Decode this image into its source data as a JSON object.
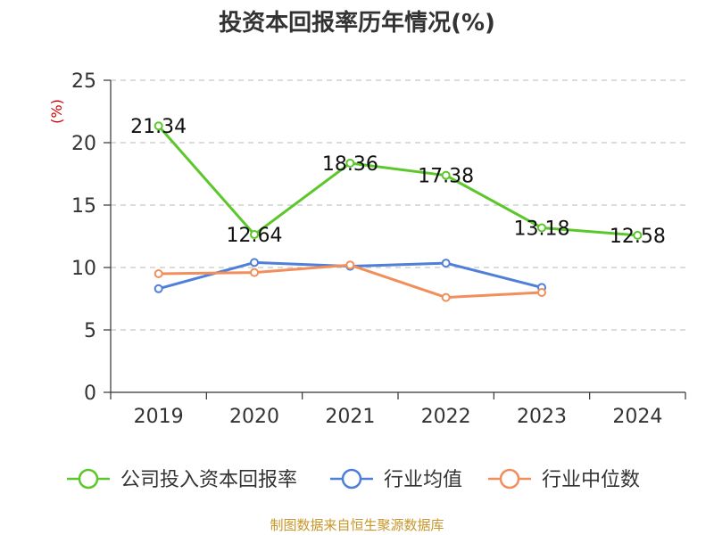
{
  "chart_data": {
    "type": "line",
    "title": "投资本回报率历年情况(%)",
    "ylabel": "(%)",
    "xlabel": "",
    "categories": [
      "2019",
      "2020",
      "2021",
      "2022",
      "2023",
      "2024"
    ],
    "ylim": [
      0,
      25
    ],
    "yticks": [
      0,
      5,
      10,
      15,
      20,
      25
    ],
    "grid": true,
    "legend_position": "bottom",
    "series": [
      {
        "name": "公司投入资本回报率",
        "color": "#5cc72a",
        "values": [
          21.34,
          12.64,
          18.36,
          17.38,
          13.18,
          12.58
        ],
        "labels": [
          "21.34",
          "12.64",
          "18.36",
          "17.38",
          "13.18",
          "12.58"
        ]
      },
      {
        "name": "行业均值",
        "color": "#4f7fd8",
        "values": [
          8.3,
          10.4,
          10.1,
          10.35,
          8.4,
          null
        ]
      },
      {
        "name": "行业中位数",
        "color": "#f28e5c",
        "values": [
          9.5,
          9.6,
          10.2,
          7.6,
          8.0,
          null
        ]
      }
    ],
    "source": "制图数据来自恒生聚源数据库"
  }
}
